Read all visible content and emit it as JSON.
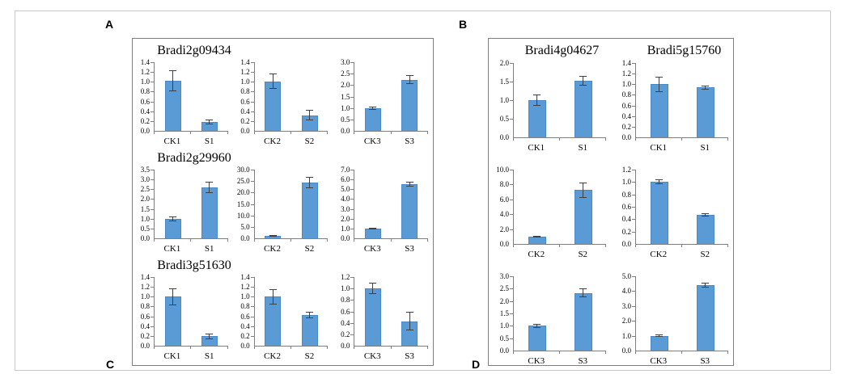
{
  "panel_letters": {
    "top_left": "A",
    "top_right": "B",
    "bottom_left": "C",
    "bottom_right": "D"
  },
  "genes": {
    "left": [
      "Bradi2g09434",
      "Bradi2g29960",
      "Bradi3g51630"
    ],
    "right": [
      "Bradi4g04627",
      "Bradi5g15760"
    ]
  },
  "colors": {
    "bar_fill": "#5b9bd5",
    "bar_edge": "#4a89c8",
    "error_bar": "#404040",
    "axis": "#7f7f7f",
    "inner_box_border": "#7f7f7f",
    "outer_frame_border": "#c9c9c9",
    "background": "#ffffff"
  },
  "chart_data": [
    {
      "type": "bar",
      "panel": "left",
      "row": 0,
      "col": 0,
      "gene": "Bradi2g09434",
      "categories": [
        "CK1",
        "S1"
      ],
      "values": [
        1.02,
        0.18
      ],
      "errors": [
        0.21,
        0.05
      ],
      "ylim": [
        0,
        1.4
      ],
      "ytick_step": 0.2
    },
    {
      "type": "bar",
      "panel": "left",
      "row": 0,
      "col": 1,
      "gene": "Bradi2g09434",
      "categories": [
        "CK2",
        "S2"
      ],
      "values": [
        1.01,
        0.32
      ],
      "errors": [
        0.16,
        0.11
      ],
      "ylim": [
        0,
        1.4
      ],
      "ytick_step": 0.2
    },
    {
      "type": "bar",
      "panel": "left",
      "row": 0,
      "col": 2,
      "gene": "Bradi2g09434",
      "categories": [
        "CK3",
        "S3"
      ],
      "values": [
        1.0,
        2.24
      ],
      "errors": [
        0.07,
        0.2
      ],
      "ylim": [
        0,
        3.0
      ],
      "ytick_step": 0.5
    },
    {
      "type": "bar",
      "panel": "left",
      "row": 1,
      "col": 0,
      "gene": "Bradi2g29960",
      "categories": [
        "CK1",
        "S1"
      ],
      "values": [
        1.0,
        2.6
      ],
      "errors": [
        0.12,
        0.3
      ],
      "ylim": [
        0,
        3.5
      ],
      "ytick_step": 0.5
    },
    {
      "type": "bar",
      "panel": "left",
      "row": 1,
      "col": 1,
      "gene": "Bradi2g29960",
      "categories": [
        "CK2",
        "S2"
      ],
      "values": [
        1.0,
        24.5
      ],
      "errors": [
        0.35,
        2.5
      ],
      "ylim": [
        0,
        30.0
      ],
      "ytick_step": 5.0
    },
    {
      "type": "bar",
      "panel": "left",
      "row": 1,
      "col": 2,
      "gene": "Bradi2g29960",
      "categories": [
        "CK3",
        "S3"
      ],
      "values": [
        1.0,
        5.5
      ],
      "errors": [
        0.08,
        0.25
      ],
      "ylim": [
        0,
        7.0
      ],
      "ytick_step": 1.0
    },
    {
      "type": "bar",
      "panel": "left",
      "row": 2,
      "col": 0,
      "gene": "Bradi3g51630",
      "categories": [
        "CK1",
        "S1"
      ],
      "values": [
        1.0,
        0.19
      ],
      "errors": [
        0.17,
        0.05
      ],
      "ylim": [
        0,
        1.4
      ],
      "ytick_step": 0.2
    },
    {
      "type": "bar",
      "panel": "left",
      "row": 2,
      "col": 1,
      "gene": "Bradi3g51630",
      "categories": [
        "CK2",
        "S2"
      ],
      "values": [
        1.0,
        0.63
      ],
      "errors": [
        0.16,
        0.07
      ],
      "ylim": [
        0,
        1.4
      ],
      "ytick_step": 0.2
    },
    {
      "type": "bar",
      "panel": "left",
      "row": 2,
      "col": 2,
      "gene": "Bradi3g51630",
      "categories": [
        "CK3",
        "S3"
      ],
      "values": [
        1.0,
        0.43
      ],
      "errors": [
        0.1,
        0.16
      ],
      "ylim": [
        0,
        1.2
      ],
      "ytick_step": 0.2
    },
    {
      "type": "bar",
      "panel": "right",
      "row": 0,
      "col": 0,
      "gene": "Bradi4g04627",
      "categories": [
        "CK1",
        "S1"
      ],
      "values": [
        1.0,
        1.52
      ],
      "errors": [
        0.15,
        0.13
      ],
      "ylim": [
        0,
        2.0
      ],
      "ytick_step": 0.5
    },
    {
      "type": "bar",
      "panel": "right",
      "row": 0,
      "col": 1,
      "gene": "Bradi5g15760",
      "categories": [
        "CK1",
        "S1"
      ],
      "values": [
        1.0,
        0.94
      ],
      "errors": [
        0.14,
        0.04
      ],
      "ylim": [
        0,
        1.4
      ],
      "ytick_step": 0.2
    },
    {
      "type": "bar",
      "panel": "right",
      "row": 1,
      "col": 0,
      "gene": "Bradi4g04627",
      "categories": [
        "CK2",
        "S2"
      ],
      "values": [
        1.0,
        7.25
      ],
      "errors": [
        0.1,
        1.0
      ],
      "ylim": [
        0,
        10.0
      ],
      "ytick_step": 2.0
    },
    {
      "type": "bar",
      "panel": "right",
      "row": 1,
      "col": 1,
      "gene": "Bradi5g15760",
      "categories": [
        "CK2",
        "S2"
      ],
      "values": [
        1.0,
        0.47
      ],
      "errors": [
        0.04,
        0.02
      ],
      "ylim": [
        0,
        1.2
      ],
      "ytick_step": 0.2
    },
    {
      "type": "bar",
      "panel": "right",
      "row": 2,
      "col": 0,
      "gene": "Bradi4g04627",
      "categories": [
        "CK3",
        "S3"
      ],
      "values": [
        1.0,
        2.33
      ],
      "errors": [
        0.08,
        0.17
      ],
      "ylim": [
        0,
        3.0
      ],
      "ytick_step": 0.5
    },
    {
      "type": "bar",
      "panel": "right",
      "row": 2,
      "col": 1,
      "gene": "Bradi5g15760",
      "categories": [
        "CK3",
        "S3"
      ],
      "values": [
        1.0,
        4.4
      ],
      "errors": [
        0.1,
        0.15
      ],
      "ylim": [
        0,
        5.0
      ],
      "ytick_step": 1.0
    }
  ]
}
